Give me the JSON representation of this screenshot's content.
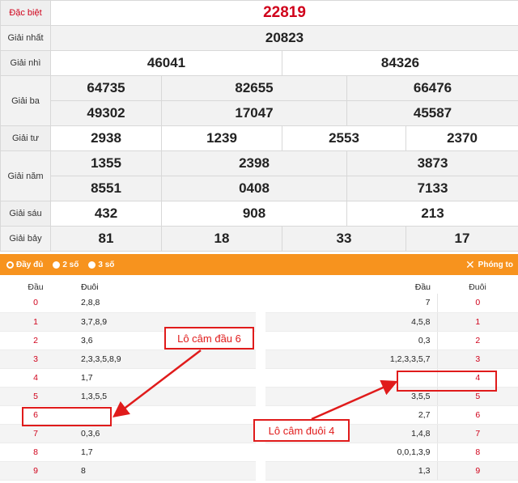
{
  "results": {
    "dac_biet": {
      "label": "Đặc biệt",
      "values": [
        "22819"
      ]
    },
    "giai_nhat": {
      "label": "Giải nhất",
      "values": [
        "20823"
      ]
    },
    "giai_nhi": {
      "label": "Giải nhì",
      "values": [
        "46041",
        "84326"
      ]
    },
    "giai_ba": {
      "label": "Giải ba",
      "row1": [
        "64735",
        "82655",
        "66476"
      ],
      "row2": [
        "49302",
        "17047",
        "45587"
      ]
    },
    "giai_tu": {
      "label": "Giải tư",
      "values": [
        "2938",
        "1239",
        "2553",
        "2370"
      ]
    },
    "giai_nam": {
      "label": "Giải năm",
      "row1": [
        "1355",
        "2398",
        "3873"
      ],
      "row2": [
        "8551",
        "0408",
        "7133"
      ]
    },
    "giai_sau": {
      "label": "Giải sáu",
      "values": [
        "432",
        "908",
        "213"
      ]
    },
    "giai_bay": {
      "label": "Giải bảy",
      "values": [
        "81",
        "18",
        "33",
        "17"
      ]
    }
  },
  "options": {
    "full": "Đầy đủ",
    "two": "2 số",
    "three": "3 số",
    "zoom": "Phóng to"
  },
  "lo_left": {
    "header_dau": "Đầu",
    "header_duoi": "Đuôi",
    "rows": [
      {
        "dau": "0",
        "duoi": "2,8,8"
      },
      {
        "dau": "1",
        "duoi": "3,7,8,9"
      },
      {
        "dau": "2",
        "duoi": "3,6"
      },
      {
        "dau": "3",
        "duoi": "2,3,3,5,8,9"
      },
      {
        "dau": "4",
        "duoi": "1,7"
      },
      {
        "dau": "5",
        "duoi": "1,3,5,5"
      },
      {
        "dau": "6",
        "duoi": ""
      },
      {
        "dau": "7",
        "duoi": "0,3,6"
      },
      {
        "dau": "8",
        "duoi": "1,7"
      },
      {
        "dau": "9",
        "duoi": "8"
      }
    ]
  },
  "lo_right": {
    "header_dau": "Đầu",
    "header_duoi": "Đuôi",
    "rows": [
      {
        "dau": "7",
        "duoi": "0"
      },
      {
        "dau": "4,5,8",
        "duoi": "1"
      },
      {
        "dau": "0,3",
        "duoi": "2"
      },
      {
        "dau": "1,2,3,3,5,7",
        "duoi": "3"
      },
      {
        "dau": "",
        "duoi": "4"
      },
      {
        "dau": "3,5,5",
        "duoi": "5"
      },
      {
        "dau": "2,7",
        "duoi": "6"
      },
      {
        "dau": "1,4,8",
        "duoi": "7"
      },
      {
        "dau": "0,0,1,3,9",
        "duoi": "8"
      },
      {
        "dau": "1,3",
        "duoi": "9"
      }
    ]
  },
  "annotations": {
    "dau6": "Lô câm đầu 6",
    "duoi4": "Lô câm đuôi 4"
  },
  "colors": {
    "accent": "#f7931e",
    "special": "#d0021b",
    "annotation": "#e01b1b"
  }
}
